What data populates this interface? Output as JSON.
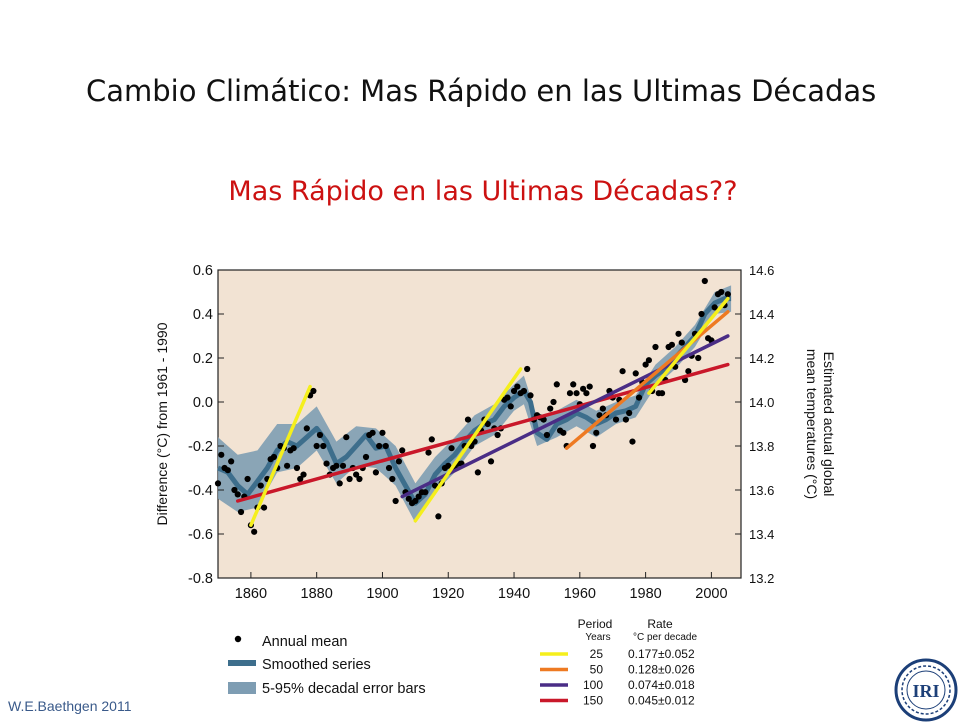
{
  "slide": {
    "title": "Cambio Climático: Mas Rápido en las Ultimas Décadas",
    "subtitle": "Mas Rápido en las Ultimas Décadas??",
    "footer": "W.E.Baethgen 2011",
    "logo_text": "IRI"
  },
  "colors": {
    "plot_bg": "#f2e3d3",
    "band": "#7e9db3",
    "smoothed": "#3d6e8c",
    "points": "#000000",
    "subtitle": "#cc1111"
  },
  "chart_data": {
    "type": "scatter",
    "xlabel": "",
    "ylabel": "Difference (°C) from 1961 - 1990",
    "y2label": "Estimated actual global mean temperatures (°C)",
    "xlim": [
      1850,
      2009
    ],
    "ylim": [
      -0.8,
      0.6
    ],
    "x_ticks": [
      "1860",
      "1880",
      "1900",
      "1920",
      "1940",
      "1960",
      "1980",
      "2000"
    ],
    "y_ticks": [
      "0.6",
      "0.4",
      "0.2",
      "0.0",
      "-0.2",
      "-0.4",
      "-0.6",
      "-0.8"
    ],
    "y2_ticks": [
      "14.6",
      "14.4",
      "14.2",
      "14.0",
      "13.8",
      "13.6",
      "13.4",
      "13.2"
    ],
    "annual_mean": [
      [
        1850,
        -0.37
      ],
      [
        1851,
        -0.24
      ],
      [
        1852,
        -0.3
      ],
      [
        1853,
        -0.31
      ],
      [
        1854,
        -0.27
      ],
      [
        1855,
        -0.4
      ],
      [
        1856,
        -0.42
      ],
      [
        1857,
        -0.5
      ],
      [
        1858,
        -0.43
      ],
      [
        1859,
        -0.35
      ],
      [
        1860,
        -0.56
      ],
      [
        1861,
        -0.59
      ],
      [
        1862,
        -0.48
      ],
      [
        1863,
        -0.38
      ],
      [
        1864,
        -0.48
      ],
      [
        1865,
        -0.35
      ],
      [
        1866,
        -0.26
      ],
      [
        1867,
        -0.25
      ],
      [
        1868,
        -0.3
      ],
      [
        1869,
        -0.2
      ],
      [
        1870,
        -0.21
      ],
      [
        1871,
        -0.29
      ],
      [
        1872,
        -0.22
      ],
      [
        1873,
        -0.21
      ],
      [
        1874,
        -0.3
      ],
      [
        1875,
        -0.35
      ],
      [
        1876,
        -0.33
      ],
      [
        1877,
        -0.12
      ],
      [
        1878,
        0.03
      ],
      [
        1879,
        0.05
      ],
      [
        1880,
        -0.2
      ],
      [
        1881,
        -0.15
      ],
      [
        1882,
        -0.2
      ],
      [
        1883,
        -0.28
      ],
      [
        1884,
        -0.33
      ],
      [
        1885,
        -0.3
      ],
      [
        1886,
        -0.29
      ],
      [
        1887,
        -0.37
      ],
      [
        1888,
        -0.29
      ],
      [
        1889,
        -0.16
      ],
      [
        1890,
        -0.35
      ],
      [
        1891,
        -0.3
      ],
      [
        1892,
        -0.33
      ],
      [
        1893,
        -0.35
      ],
      [
        1894,
        -0.3
      ],
      [
        1895,
        -0.25
      ],
      [
        1896,
        -0.15
      ],
      [
        1897,
        -0.14
      ],
      [
        1898,
        -0.32
      ],
      [
        1899,
        -0.2
      ],
      [
        1900,
        -0.14
      ],
      [
        1901,
        -0.2
      ],
      [
        1902,
        -0.3
      ],
      [
        1903,
        -0.35
      ],
      [
        1904,
        -0.45
      ],
      [
        1905,
        -0.27
      ],
      [
        1906,
        -0.22
      ],
      [
        1907,
        -0.41
      ],
      [
        1908,
        -0.44
      ],
      [
        1909,
        -0.46
      ],
      [
        1910,
        -0.45
      ],
      [
        1911,
        -0.43
      ],
      [
        1912,
        -0.41
      ],
      [
        1913,
        -0.41
      ],
      [
        1914,
        -0.23
      ],
      [
        1915,
        -0.17
      ],
      [
        1916,
        -0.38
      ],
      [
        1917,
        -0.52
      ],
      [
        1918,
        -0.37
      ],
      [
        1919,
        -0.3
      ],
      [
        1920,
        -0.29
      ],
      [
        1921,
        -0.21
      ],
      [
        1922,
        -0.3
      ],
      [
        1923,
        -0.28
      ],
      [
        1924,
        -0.28
      ],
      [
        1925,
        -0.2
      ],
      [
        1926,
        -0.08
      ],
      [
        1927,
        -0.2
      ],
      [
        1928,
        -0.18
      ],
      [
        1929,
        -0.32
      ],
      [
        1930,
        -0.13
      ],
      [
        1931,
        -0.08
      ],
      [
        1932,
        -0.1
      ],
      [
        1933,
        -0.27
      ],
      [
        1934,
        -0.12
      ],
      [
        1935,
        -0.15
      ],
      [
        1936,
        -0.12
      ],
      [
        1937,
        0.01
      ],
      [
        1938,
        0.02
      ],
      [
        1939,
        -0.02
      ],
      [
        1940,
        0.05
      ],
      [
        1941,
        0.07
      ],
      [
        1942,
        0.04
      ],
      [
        1943,
        0.05
      ],
      [
        1944,
        0.15
      ],
      [
        1945,
        0.03
      ],
      [
        1946,
        -0.08
      ],
      [
        1947,
        -0.06
      ],
      [
        1948,
        -0.07
      ],
      [
        1949,
        -0.08
      ],
      [
        1950,
        -0.15
      ],
      [
        1951,
        -0.03
      ],
      [
        1952,
        0.0
      ],
      [
        1953,
        0.08
      ],
      [
        1954,
        -0.13
      ],
      [
        1955,
        -0.14
      ],
      [
        1956,
        -0.2
      ],
      [
        1957,
        0.04
      ],
      [
        1958,
        0.08
      ],
      [
        1959,
        0.04
      ],
      [
        1960,
        -0.01
      ],
      [
        1961,
        0.06
      ],
      [
        1962,
        0.04
      ],
      [
        1963,
        0.07
      ],
      [
        1964,
        -0.2
      ],
      [
        1965,
        -0.14
      ],
      [
        1966,
        -0.06
      ],
      [
        1967,
        -0.03
      ],
      [
        1968,
        -0.06
      ],
      [
        1969,
        0.05
      ],
      [
        1970,
        0.02
      ],
      [
        1971,
        -0.08
      ],
      [
        1972,
        0.01
      ],
      [
        1973,
        0.14
      ],
      [
        1974,
        -0.08
      ],
      [
        1975,
        -0.05
      ],
      [
        1976,
        -0.18
      ],
      [
        1977,
        0.13
      ],
      [
        1978,
        0.02
      ],
      [
        1979,
        0.09
      ],
      [
        1980,
        0.17
      ],
      [
        1981,
        0.19
      ],
      [
        1982,
        0.05
      ],
      [
        1983,
        0.25
      ],
      [
        1984,
        0.04
      ],
      [
        1985,
        0.04
      ],
      [
        1986,
        0.1
      ],
      [
        1987,
        0.25
      ],
      [
        1988,
        0.26
      ],
      [
        1989,
        0.16
      ],
      [
        1990,
        0.31
      ],
      [
        1991,
        0.27
      ],
      [
        1992,
        0.1
      ],
      [
        1993,
        0.14
      ],
      [
        1994,
        0.21
      ],
      [
        1995,
        0.31
      ],
      [
        1996,
        0.2
      ],
      [
        1997,
        0.4
      ],
      [
        1998,
        0.55
      ],
      [
        1999,
        0.29
      ],
      [
        2000,
        0.28
      ],
      [
        2001,
        0.43
      ],
      [
        2002,
        0.49
      ],
      [
        2003,
        0.5
      ],
      [
        2004,
        0.44
      ],
      [
        2005,
        0.49
      ]
    ],
    "smoothed_series": [
      [
        1850,
        -0.3
      ],
      [
        1853,
        -0.32
      ],
      [
        1856,
        -0.38
      ],
      [
        1859,
        -0.42
      ],
      [
        1862,
        -0.36
      ],
      [
        1865,
        -0.3
      ],
      [
        1868,
        -0.22
      ],
      [
        1871,
        -0.18
      ],
      [
        1874,
        -0.2
      ],
      [
        1877,
        -0.16
      ],
      [
        1880,
        -0.12
      ],
      [
        1883,
        -0.18
      ],
      [
        1886,
        -0.28
      ],
      [
        1889,
        -0.25
      ],
      [
        1892,
        -0.2
      ],
      [
        1895,
        -0.15
      ],
      [
        1898,
        -0.21
      ],
      [
        1901,
        -0.2
      ],
      [
        1904,
        -0.3
      ],
      [
        1907,
        -0.38
      ],
      [
        1910,
        -0.46
      ],
      [
        1913,
        -0.42
      ],
      [
        1916,
        -0.33
      ],
      [
        1919,
        -0.28
      ],
      [
        1922,
        -0.24
      ],
      [
        1925,
        -0.18
      ],
      [
        1928,
        -0.13
      ],
      [
        1931,
        -0.1
      ],
      [
        1934,
        -0.08
      ],
      [
        1937,
        -0.02
      ],
      [
        1940,
        0.02
      ],
      [
        1943,
        0.05
      ],
      [
        1945,
        0.0
      ],
      [
        1947,
        -0.14
      ],
      [
        1950,
        -0.17
      ],
      [
        1953,
        -0.1
      ],
      [
        1956,
        -0.08
      ],
      [
        1959,
        -0.05
      ],
      [
        1962,
        -0.07
      ],
      [
        1965,
        -0.1
      ],
      [
        1968,
        -0.08
      ],
      [
        1971,
        -0.05
      ],
      [
        1974,
        -0.04
      ],
      [
        1977,
        -0.02
      ],
      [
        1980,
        0.08
      ],
      [
        1983,
        0.12
      ],
      [
        1986,
        0.15
      ],
      [
        1989,
        0.2
      ],
      [
        1992,
        0.25
      ],
      [
        1995,
        0.3
      ],
      [
        1998,
        0.4
      ],
      [
        2001,
        0.45
      ],
      [
        2004,
        0.47
      ],
      [
        2006,
        0.47
      ]
    ],
    "error_band": [
      [
        1850,
        -0.44,
        -0.16
      ],
      [
        1856,
        -0.5,
        -0.24
      ],
      [
        1862,
        -0.48,
        -0.22
      ],
      [
        1868,
        -0.32,
        -0.1
      ],
      [
        1874,
        -0.3,
        -0.1
      ],
      [
        1880,
        -0.22,
        -0.02
      ],
      [
        1886,
        -0.37,
        -0.18
      ],
      [
        1892,
        -0.29,
        -0.11
      ],
      [
        1898,
        -0.3,
        -0.12
      ],
      [
        1904,
        -0.38,
        -0.2
      ],
      [
        1910,
        -0.55,
        -0.37
      ],
      [
        1916,
        -0.41,
        -0.25
      ],
      [
        1922,
        -0.32,
        -0.16
      ],
      [
        1928,
        -0.2,
        -0.06
      ],
      [
        1934,
        -0.15,
        -0.01
      ],
      [
        1940,
        -0.04,
        0.08
      ],
      [
        1943,
        -0.01,
        0.12
      ],
      [
        1947,
        -0.2,
        -0.07
      ],
      [
        1953,
        -0.16,
        -0.04
      ],
      [
        1959,
        -0.11,
        0.01
      ],
      [
        1965,
        -0.16,
        -0.04
      ],
      [
        1971,
        -0.1,
        0.0
      ],
      [
        1977,
        -0.07,
        0.03
      ],
      [
        1983,
        0.07,
        0.17
      ],
      [
        1989,
        0.15,
        0.25
      ],
      [
        1995,
        0.25,
        0.35
      ],
      [
        2001,
        0.4,
        0.5
      ],
      [
        2006,
        0.41,
        0.53
      ]
    ],
    "trend_lines": [
      {
        "period": "25",
        "rate": "0.177±0.052",
        "color": "#f5ef1c",
        "x": [
          1981,
          2005
        ],
        "y": [
          0.04,
          0.47
        ]
      },
      {
        "period": "50",
        "rate": "0.128±0.026",
        "color": "#ee7a22",
        "x": [
          1956,
          2005
        ],
        "y": [
          -0.21,
          0.41
        ]
      },
      {
        "period": "100",
        "rate": "0.074±0.018",
        "color": "#4a2d86",
        "x": [
          1906,
          2005
        ],
        "y": [
          -0.43,
          0.3
        ]
      },
      {
        "period": "150",
        "rate": "0.045±0.012",
        "color": "#c9182a",
        "x": [
          1856,
          2005
        ],
        "y": [
          -0.45,
          0.17
        ]
      }
    ],
    "highlight_lines": [
      {
        "color": "#f5ef1c",
        "x": [
          1860,
          1878
        ],
        "y": [
          -0.56,
          0.07
        ]
      },
      {
        "color": "#f5ef1c",
        "x": [
          1910,
          1942
        ],
        "y": [
          -0.54,
          0.15
        ]
      }
    ],
    "legend": {
      "annual_mean": "Annual mean",
      "smoothed": "Smoothed series",
      "band": "5-95% decadal error bars",
      "period_header": "Period",
      "period_unit": "Years",
      "rate_header": "Rate",
      "rate_unit": "°C  per decade"
    }
  }
}
